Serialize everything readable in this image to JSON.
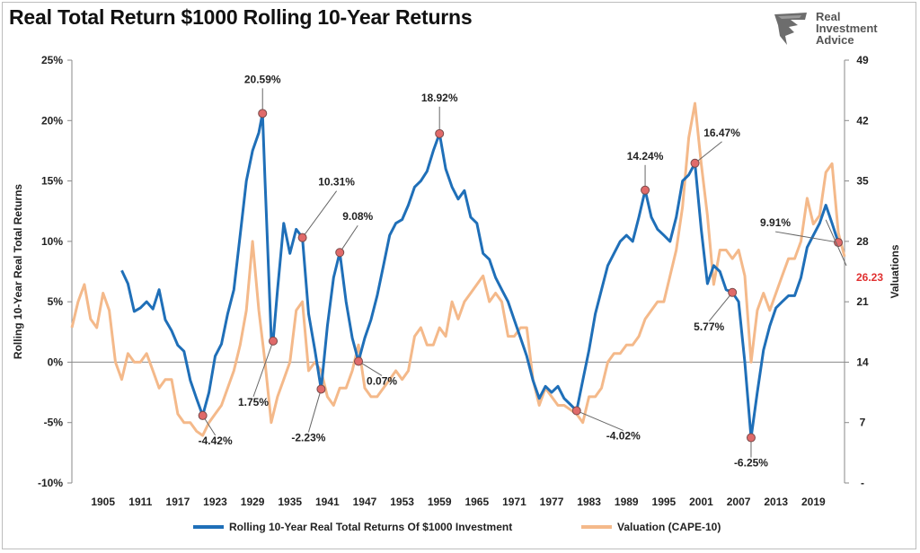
{
  "title": "Real Total Return $1000 Rolling 10-Year Returns",
  "logo": {
    "line1": "Real",
    "line2": "Investment",
    "line3": "Advice"
  },
  "colors": {
    "returns": "#1f6fb8",
    "valuation": "#f4b98a",
    "highlight": "#e03030",
    "marker": "#e06a6a"
  },
  "legend": {
    "returns": "Rolling 10-Year Real Total Returns Of $1000 Investment",
    "valuation": "Valuation (CAPE-10)"
  },
  "chart_data": {
    "type": "line",
    "title": "Real Total Return $1000 Rolling 10-Year Returns",
    "ylabel": "Rolling 10-Year Real Total Returns",
    "y2label": "Valuations",
    "ylim": [
      -10,
      25
    ],
    "y2lim": [
      0,
      49
    ],
    "xlim": [
      1900,
      2024
    ],
    "x_ticks": [
      "1905",
      "1911",
      "1917",
      "1923",
      "1929",
      "1935",
      "1941",
      "1947",
      "1953",
      "1959",
      "1965",
      "1971",
      "1977",
      "1983",
      "1989",
      "1995",
      "2001",
      "2007",
      "2013",
      "2019"
    ],
    "y_ticks": [
      "-10%",
      "-5%",
      "0%",
      "5%",
      "10%",
      "15%",
      "20%",
      "25%"
    ],
    "y2_ticks": [
      "-",
      "7",
      "14",
      "21",
      "28",
      "35",
      "42",
      "49"
    ],
    "legend_position": "bottom",
    "grid": false,
    "series": [
      {
        "name": "Rolling 10-Year Real Total Returns Of $1000 Investment",
        "axis": "left",
        "points": [
          [
            1908,
            7.6
          ],
          [
            1909,
            6.5
          ],
          [
            1910,
            4.2
          ],
          [
            1911,
            4.5
          ],
          [
            1912,
            5.0
          ],
          [
            1913,
            4.4
          ],
          [
            1914,
            6.0
          ],
          [
            1915,
            3.5
          ],
          [
            1916,
            2.6
          ],
          [
            1917,
            1.4
          ],
          [
            1918,
            0.9
          ],
          [
            1919,
            -1.5
          ],
          [
            1920,
            -3.0
          ],
          [
            1921,
            -4.42
          ],
          [
            1922,
            -2.5
          ],
          [
            1923,
            0.5
          ],
          [
            1924,
            1.5
          ],
          [
            1925,
            4.0
          ],
          [
            1926,
            6.0
          ],
          [
            1927,
            10.5
          ],
          [
            1928,
            15.0
          ],
          [
            1929,
            17.5
          ],
          [
            1930,
            19.0
          ],
          [
            1930.6,
            20.59
          ],
          [
            1931,
            15.0
          ],
          [
            1932,
            2.0
          ],
          [
            1932.3,
            1.75
          ],
          [
            1933,
            6.0
          ],
          [
            1934,
            11.5
          ],
          [
            1935,
            9.0
          ],
          [
            1936,
            11.0
          ],
          [
            1937,
            10.31
          ],
          [
            1938,
            4.0
          ],
          [
            1939,
            1.0
          ],
          [
            1940,
            -2.23
          ],
          [
            1941,
            3.0
          ],
          [
            1942,
            7.0
          ],
          [
            1943,
            9.08
          ],
          [
            1944,
            5.0
          ],
          [
            1945,
            2.0
          ],
          [
            1946,
            0.07
          ],
          [
            1947,
            2.0
          ],
          [
            1948,
            3.5
          ],
          [
            1949,
            5.5
          ],
          [
            1950,
            8.0
          ],
          [
            1951,
            10.5
          ],
          [
            1952,
            11.5
          ],
          [
            1953,
            11.8
          ],
          [
            1954,
            13.0
          ],
          [
            1955,
            14.5
          ],
          [
            1956,
            15.0
          ],
          [
            1957,
            15.8
          ],
          [
            1958,
            17.5
          ],
          [
            1959,
            18.92
          ],
          [
            1960,
            16.0
          ],
          [
            1961,
            14.5
          ],
          [
            1962,
            13.5
          ],
          [
            1963,
            14.2
          ],
          [
            1964,
            12.0
          ],
          [
            1965,
            11.5
          ],
          [
            1966,
            9.0
          ],
          [
            1967,
            8.5
          ],
          [
            1968,
            7.0
          ],
          [
            1969,
            6.0
          ],
          [
            1970,
            5.0
          ],
          [
            1971,
            3.5
          ],
          [
            1972,
            2.0
          ],
          [
            1973,
            0.5
          ],
          [
            1974,
            -1.5
          ],
          [
            1975,
            -3.0
          ],
          [
            1976,
            -2.0
          ],
          [
            1977,
            -2.5
          ],
          [
            1978,
            -2.0
          ],
          [
            1979,
            -3.0
          ],
          [
            1980,
            -3.5
          ],
          [
            1981,
            -4.02
          ],
          [
            1982,
            -1.5
          ],
          [
            1983,
            1.0
          ],
          [
            1984,
            4.0
          ],
          [
            1985,
            6.0
          ],
          [
            1986,
            8.0
          ],
          [
            1987,
            9.0
          ],
          [
            1988,
            10.0
          ],
          [
            1989,
            10.5
          ],
          [
            1990,
            10.0
          ],
          [
            1991,
            12.0
          ],
          [
            1992,
            14.24
          ],
          [
            1993,
            12.0
          ],
          [
            1994,
            11.0
          ],
          [
            1995,
            10.5
          ],
          [
            1996,
            10.0
          ],
          [
            1997,
            12.0
          ],
          [
            1998,
            15.0
          ],
          [
            1999,
            15.5
          ],
          [
            2000,
            16.47
          ],
          [
            2001,
            11.0
          ],
          [
            2002,
            6.5
          ],
          [
            2003,
            8.0
          ],
          [
            2004,
            7.5
          ],
          [
            2005,
            6.0
          ],
          [
            2006,
            5.77
          ],
          [
            2007,
            5.0
          ],
          [
            2008,
            0.0
          ],
          [
            2009,
            -6.25
          ],
          [
            2010,
            -2.5
          ],
          [
            2011,
            1.0
          ],
          [
            2012,
            3.0
          ],
          [
            2013,
            4.5
          ],
          [
            2014,
            5.0
          ],
          [
            2015,
            5.5
          ],
          [
            2016,
            5.5
          ],
          [
            2017,
            7.0
          ],
          [
            2018,
            9.5
          ],
          [
            2019,
            10.5
          ],
          [
            2020,
            11.5
          ],
          [
            2021,
            13.0
          ],
          [
            2022,
            11.5
          ],
          [
            2023,
            9.91
          ]
        ],
        "labels": [
          {
            "x": 1921,
            "y": -4.42,
            "text": "-4.42%",
            "dx": 14,
            "dy": 32
          },
          {
            "x": 1930.6,
            "y": 20.59,
            "text": "20.59%",
            "dx": 0,
            "dy": -34
          },
          {
            "x": 1932.3,
            "y": 1.75,
            "text": "1.75%",
            "dx": -22,
            "dy": 72
          },
          {
            "x": 1937,
            "y": 10.31,
            "text": "10.31%",
            "dx": 38,
            "dy": -58
          },
          {
            "x": 1940,
            "y": -2.23,
            "text": "-2.23%",
            "dx": -14,
            "dy": 58
          },
          {
            "x": 1943,
            "y": 9.08,
            "text": "9.08%",
            "dx": 20,
            "dy": -36
          },
          {
            "x": 1946,
            "y": 0.07,
            "text": "0.07%",
            "dx": 26,
            "dy": 26
          },
          {
            "x": 1959,
            "y": 18.92,
            "text": "18.92%",
            "dx": 0,
            "dy": -36
          },
          {
            "x": 1981,
            "y": -4.02,
            "text": "-4.02%",
            "dx": 52,
            "dy": 32
          },
          {
            "x": 1992,
            "y": 14.24,
            "text": "14.24%",
            "dx": 0,
            "dy": -34
          },
          {
            "x": 2000,
            "y": 16.47,
            "text": "16.47%",
            "dx": 30,
            "dy": -30
          },
          {
            "x": 2006,
            "y": 5.77,
            "text": "5.77%",
            "dx": -26,
            "dy": 42
          },
          {
            "x": 2009,
            "y": -6.25,
            "text": "-6.25%",
            "dx": 0,
            "dy": 32
          },
          {
            "x": 2023,
            "y": 9.91,
            "text": "9.91%",
            "dx": -70,
            "dy": -18
          }
        ]
      },
      {
        "name": "Valuation (CAPE-10)",
        "axis": "right",
        "points": [
          [
            1900,
            18
          ],
          [
            1901,
            21
          ],
          [
            1902,
            23
          ],
          [
            1903,
            19
          ],
          [
            1904,
            18
          ],
          [
            1905,
            22
          ],
          [
            1906,
            20
          ],
          [
            1907,
            14
          ],
          [
            1908,
            12
          ],
          [
            1909,
            15
          ],
          [
            1910,
            14
          ],
          [
            1911,
            14
          ],
          [
            1912,
            15
          ],
          [
            1913,
            13
          ],
          [
            1914,
            11
          ],
          [
            1915,
            12
          ],
          [
            1916,
            12
          ],
          [
            1917,
            8
          ],
          [
            1918,
            7
          ],
          [
            1919,
            7
          ],
          [
            1920,
            6
          ],
          [
            1921,
            5.5
          ],
          [
            1922,
            7
          ],
          [
            1923,
            8
          ],
          [
            1924,
            9
          ],
          [
            1925,
            11
          ],
          [
            1926,
            13
          ],
          [
            1927,
            16
          ],
          [
            1928,
            20
          ],
          [
            1929,
            28
          ],
          [
            1930,
            20
          ],
          [
            1931,
            14
          ],
          [
            1932,
            7
          ],
          [
            1933,
            10
          ],
          [
            1934,
            12
          ],
          [
            1935,
            14
          ],
          [
            1936,
            20
          ],
          [
            1937,
            21
          ],
          [
            1938,
            13
          ],
          [
            1939,
            14
          ],
          [
            1940,
            13
          ],
          [
            1941,
            10
          ],
          [
            1942,
            9
          ],
          [
            1943,
            11
          ],
          [
            1944,
            11
          ],
          [
            1945,
            13
          ],
          [
            1946,
            16
          ],
          [
            1947,
            11
          ],
          [
            1948,
            10
          ],
          [
            1949,
            10
          ],
          [
            1950,
            11
          ],
          [
            1951,
            12
          ],
          [
            1952,
            13
          ],
          [
            1953,
            12
          ],
          [
            1954,
            13
          ],
          [
            1955,
            17
          ],
          [
            1956,
            18
          ],
          [
            1957,
            16
          ],
          [
            1958,
            16
          ],
          [
            1959,
            18
          ],
          [
            1960,
            17
          ],
          [
            1961,
            21
          ],
          [
            1962,
            19
          ],
          [
            1963,
            21
          ],
          [
            1964,
            22
          ],
          [
            1965,
            23
          ],
          [
            1966,
            24
          ],
          [
            1967,
            21
          ],
          [
            1968,
            22
          ],
          [
            1969,
            21
          ],
          [
            1970,
            17
          ],
          [
            1971,
            17
          ],
          [
            1972,
            18
          ],
          [
            1973,
            18
          ],
          [
            1974,
            12
          ],
          [
            1975,
            9
          ],
          [
            1976,
            11
          ],
          [
            1977,
            10
          ],
          [
            1978,
            9
          ],
          [
            1979,
            9
          ],
          [
            1980,
            8.5
          ],
          [
            1981,
            8
          ],
          [
            1982,
            7
          ],
          [
            1983,
            10
          ],
          [
            1984,
            10
          ],
          [
            1985,
            11
          ],
          [
            1986,
            14
          ],
          [
            1987,
            15
          ],
          [
            1988,
            15
          ],
          [
            1989,
            16
          ],
          [
            1990,
            16
          ],
          [
            1991,
            17
          ],
          [
            1992,
            19
          ],
          [
            1993,
            20
          ],
          [
            1994,
            21
          ],
          [
            1995,
            21
          ],
          [
            1996,
            24
          ],
          [
            1997,
            27
          ],
          [
            1998,
            32
          ],
          [
            1999,
            40
          ],
          [
            2000,
            44
          ],
          [
            2001,
            37
          ],
          [
            2002,
            31
          ],
          [
            2003,
            23
          ],
          [
            2004,
            27
          ],
          [
            2005,
            27
          ],
          [
            2006,
            26
          ],
          [
            2007,
            27
          ],
          [
            2008,
            24
          ],
          [
            2009,
            14
          ],
          [
            2010,
            20
          ],
          [
            2011,
            22
          ],
          [
            2012,
            20
          ],
          [
            2013,
            22
          ],
          [
            2014,
            24
          ],
          [
            2015,
            26
          ],
          [
            2016,
            26
          ],
          [
            2017,
            28
          ],
          [
            2018,
            33
          ],
          [
            2019,
            30
          ],
          [
            2020,
            31
          ],
          [
            2021,
            36
          ],
          [
            2022,
            37
          ],
          [
            2023,
            29
          ],
          [
            2024,
            26.23
          ]
        ],
        "end_label": "26.23"
      }
    ]
  }
}
